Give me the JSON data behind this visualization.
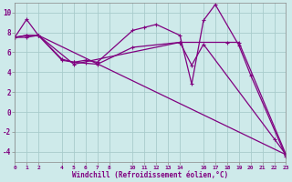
{
  "xlabel": "Windchill (Refroidissement éolien,°C)",
  "background_color": "#ceeaea",
  "grid_color": "#a8cccc",
  "line_color": "#800080",
  "series": [
    {
      "x": [
        0,
        1,
        2,
        4,
        5,
        6,
        7,
        10,
        11,
        12,
        14,
        15,
        16,
        17,
        19,
        20,
        23
      ],
      "y": [
        7.5,
        9.3,
        7.7,
        5.3,
        5.0,
        5.2,
        5.0,
        8.2,
        8.5,
        8.8,
        7.7,
        2.8,
        9.2,
        10.8,
        6.7,
        3.7,
        -4.5
      ]
    },
    {
      "x": [
        0,
        1,
        2,
        4,
        5,
        6,
        7,
        10,
        14,
        15,
        16,
        22,
        23
      ],
      "y": [
        7.5,
        7.7,
        7.7,
        5.2,
        5.0,
        4.9,
        4.8,
        6.5,
        7.0,
        4.7,
        6.8,
        -2.7,
        -4.3
      ]
    },
    {
      "x": [
        0,
        1,
        2,
        5,
        14,
        18,
        19,
        23
      ],
      "y": [
        7.5,
        7.7,
        7.7,
        4.8,
        7.0,
        7.0,
        7.0,
        -4.3
      ]
    },
    {
      "x": [
        0,
        1,
        2,
        23
      ],
      "y": [
        7.5,
        7.5,
        7.7,
        -4.3
      ]
    }
  ],
  "xlim": [
    0,
    23
  ],
  "ylim": [
    -5,
    11
  ],
  "yticks": [
    -4,
    -2,
    0,
    2,
    4,
    6,
    8,
    10
  ],
  "xtick_positions": [
    0,
    1,
    2,
    4,
    5,
    6,
    7,
    8,
    10,
    11,
    12,
    13,
    14,
    16,
    17,
    18,
    19,
    20,
    21,
    22,
    23
  ],
  "xtick_labels": [
    "0",
    "1",
    "2",
    "4",
    "5",
    "6",
    "7",
    "8",
    "10",
    "11",
    "12",
    "13",
    "14",
    "16",
    "17",
    "18",
    "19",
    "20",
    "21",
    "22",
    "23"
  ],
  "figsize": [
    3.2,
    2.0
  ],
  "dpi": 100
}
